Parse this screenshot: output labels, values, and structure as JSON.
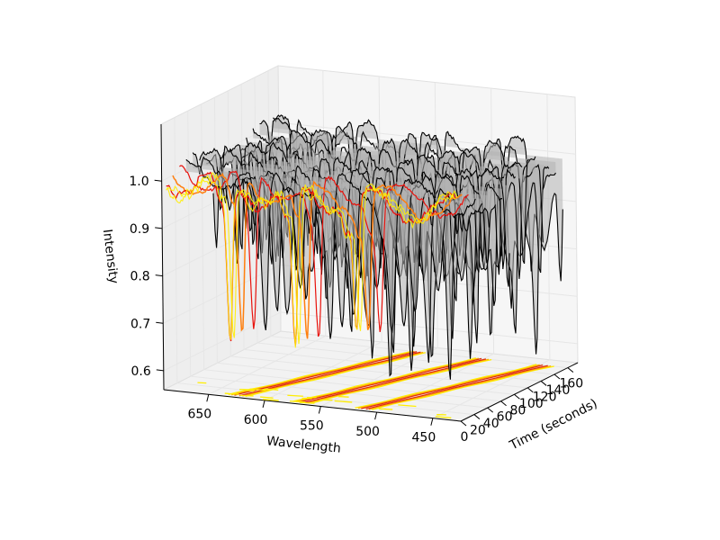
{
  "chart_data": {
    "type": "line",
    "projection": "3d",
    "title": "",
    "xlabel": "Wavelength",
    "ylabel": "Time (seconds)",
    "zlabel": "Intensity",
    "x_range": [
      425,
      690
    ],
    "y_range": [
      0,
      175
    ],
    "z_range": [
      0.56,
      1.12
    ],
    "x_ticks": [
      650,
      600,
      550,
      500,
      450
    ],
    "y_ticks": [
      0,
      20,
      40,
      60,
      80,
      100,
      120,
      140,
      160
    ],
    "z_ticks": [
      0.6,
      0.7,
      0.8,
      0.9,
      1.0
    ],
    "grid": true,
    "legend": "none",
    "series_meta": {
      "baseline_intensity": 1.0,
      "absorption_dips_nm": [
        630,
        572,
        517
      ],
      "main_dip_min_intensity": [
        0.66,
        0.66,
        0.72
      ]
    },
    "time_slices_s": [
      0,
      10,
      20,
      30,
      40,
      50,
      60,
      70,
      80,
      90,
      100,
      110,
      120,
      130,
      140,
      150,
      160
    ],
    "colors": {
      "early_red": "#e8120c",
      "mid_orange": "#ff7f0e",
      "late_black": "#000000",
      "surface_fill": "#b3b3b3",
      "contour_yellow": "#ffee00",
      "contour_orange": "#ffb000",
      "contour_red": "#e03010"
    },
    "contours": {
      "plane": "intensity=0.56",
      "levels": [
        "yellow",
        "orange",
        "red"
      ]
    }
  }
}
